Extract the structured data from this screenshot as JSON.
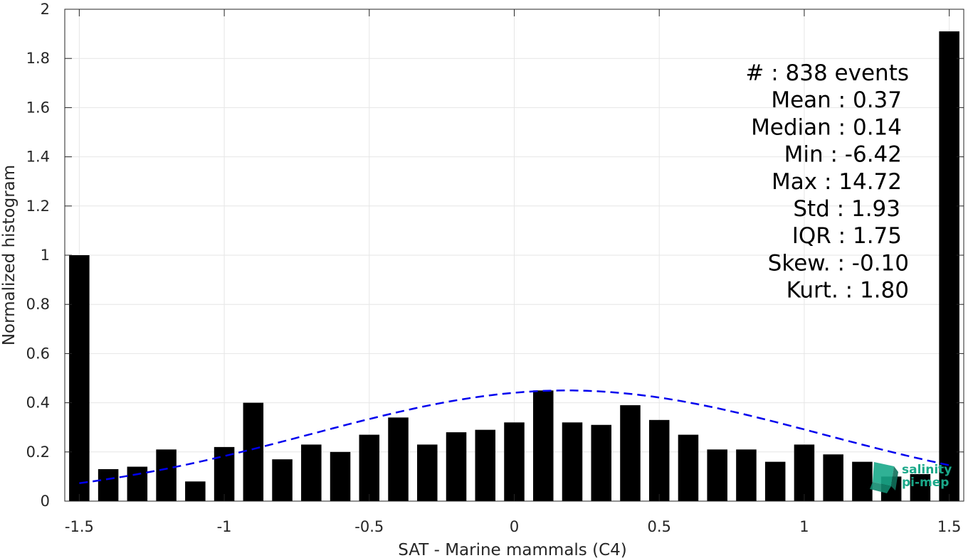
{
  "chart_data": {
    "type": "bar",
    "xlabel": "SAT - Marine mammals (C4)",
    "ylabel": "Normalized histogram",
    "xlim": [
      -1.55,
      1.55
    ],
    "ylim": [
      0,
      2
    ],
    "x_ticks": [
      -1.5,
      -1,
      -0.5,
      0,
      0.5,
      1,
      1.5
    ],
    "x_tick_labels": [
      "-1.5",
      "-1",
      "-0.5",
      "0",
      "0.5",
      "1",
      "1.5"
    ],
    "y_ticks": [
      0,
      0.2,
      0.4,
      0.6,
      0.8,
      1,
      1.2,
      1.4,
      1.6,
      1.8,
      2
    ],
    "y_tick_labels": [
      "0",
      "0.2",
      "0.4",
      "0.6",
      "0.8",
      "1",
      "1.2",
      "1.4",
      "1.6",
      "1.8",
      "2"
    ],
    "grid": true,
    "bar_width": 0.07,
    "x": [
      -1.5,
      -1.4,
      -1.3,
      -1.2,
      -1.1,
      -1.0,
      -0.9,
      -0.8,
      -0.7,
      -0.6,
      -0.5,
      -0.4,
      -0.3,
      -0.2,
      -0.1,
      0.0,
      0.1,
      0.2,
      0.3,
      0.4,
      0.5,
      0.6,
      0.7,
      0.8,
      0.9,
      1.0,
      1.1,
      1.2,
      1.3,
      1.4,
      1.5
    ],
    "values": [
      1.0,
      0.13,
      0.14,
      0.21,
      0.08,
      0.22,
      0.4,
      0.17,
      0.23,
      0.2,
      0.27,
      0.34,
      0.23,
      0.28,
      0.29,
      0.32,
      0.45,
      0.32,
      0.31,
      0.39,
      0.33,
      0.27,
      0.21,
      0.21,
      0.16,
      0.23,
      0.19,
      0.16,
      0.1,
      0.11,
      1.91
    ],
    "bar_color": "#000000",
    "fit_curve": {
      "style": "dashed",
      "color": "#0000ee",
      "mean": 0.18,
      "std": 0.88,
      "peak": 0.45,
      "x_range": [
        -1.5,
        1.5
      ]
    },
    "stats_lines": [
      "#  : 838 events",
      "Mean : 0.37",
      "Median : 0.14",
      "Min : -6.42",
      "Max : 14.72",
      "Std : 1.93",
      "IQR : 1.75",
      "Skew. : -0.10",
      "Kurt. : 1.80"
    ]
  },
  "logo": {
    "line1": "salinity",
    "line2": "pi-mep",
    "color": "#1aa889"
  }
}
